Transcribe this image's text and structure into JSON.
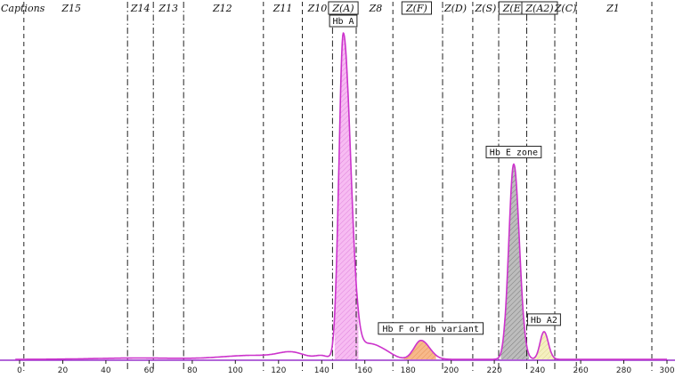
{
  "chart_data": {
    "type": "area",
    "title": "",
    "xlabel": "",
    "ylabel": "",
    "xlim": [
      0,
      300
    ],
    "ylim": [
      0,
      1
    ],
    "grid": false,
    "colors": {
      "curve": "#cc33cc",
      "baseline": "#9933cc",
      "boundary": "#222222",
      "fill_hb_a": "#f6b3f0",
      "fill_hb_f": "#f5b27a",
      "fill_hb_e": "#a8a8a8",
      "fill_hb_a2": "#f3eeb0"
    },
    "captions_label": "Captions",
    "zones": [
      {
        "label": "Z15",
        "center": 24,
        "boxed": false
      },
      {
        "label": "Z14",
        "center": 56,
        "boxed": false
      },
      {
        "label": "Z13",
        "center": 69,
        "boxed": false
      },
      {
        "label": "Z12",
        "center": 94,
        "boxed": false
      },
      {
        "label": "Z11",
        "center": 122,
        "boxed": false
      },
      {
        "label": "Z10",
        "center": 138,
        "boxed": false
      },
      {
        "label": "Z(A)",
        "center": 150,
        "boxed": true
      },
      {
        "label": "Z8",
        "center": 165,
        "boxed": false
      },
      {
        "label": "Z(F)",
        "center": 184,
        "boxed": true
      },
      {
        "label": "Z(D)",
        "center": 202,
        "boxed": false
      },
      {
        "label": "Z(S)",
        "center": 216,
        "boxed": false
      },
      {
        "label": "Z(E)",
        "center": 229,
        "boxed": true
      },
      {
        "label": "Z(A2)",
        "center": 241,
        "boxed": true
      },
      {
        "label": "Z(C)",
        "center": 253,
        "boxed": false
      },
      {
        "label": "Z1",
        "center": 275,
        "boxed": false
      }
    ],
    "boundaries": [
      {
        "x": 2,
        "style": "dashed"
      },
      {
        "x": 50,
        "style": "dashdot"
      },
      {
        "x": 62,
        "style": "dashdot"
      },
      {
        "x": 76,
        "style": "dashdot"
      },
      {
        "x": 113,
        "style": "dashed"
      },
      {
        "x": 131,
        "style": "dashed"
      },
      {
        "x": 145,
        "style": "dashdot"
      },
      {
        "x": 156,
        "style": "dashdot"
      },
      {
        "x": 173,
        "style": "dashed"
      },
      {
        "x": 196,
        "style": "dashdot"
      },
      {
        "x": 210,
        "style": "dashed"
      },
      {
        "x": 222,
        "style": "dashdot"
      },
      {
        "x": 235,
        "style": "dashdot"
      },
      {
        "x": 248,
        "style": "dashdot"
      },
      {
        "x": 258,
        "style": "dashed"
      },
      {
        "x": 293,
        "style": "dashed"
      }
    ],
    "x_ticks": [
      0,
      20,
      40,
      60,
      80,
      100,
      120,
      140,
      160,
      180,
      200,
      220,
      240,
      260,
      280,
      300
    ],
    "peaks": [
      {
        "name": "Hb A",
        "center": 150,
        "height": 1.0,
        "sigma_left": 2.0,
        "sigma_right": 3.4,
        "fill": "fill_hb_a",
        "fill_range": [
          146,
          157
        ]
      },
      {
        "name": "Hb F or Hb variant",
        "center": 186,
        "height": 0.058,
        "sigma_left": 3.2,
        "sigma_right": 4.0,
        "fill": "fill_hb_f",
        "fill_range": [
          178,
          193
        ]
      },
      {
        "name": "Hb E zone",
        "center": 229,
        "height": 0.6,
        "sigma_left": 2.3,
        "sigma_right": 2.6,
        "fill": "fill_hb_e",
        "fill_range": [
          223,
          236
        ]
      },
      {
        "name": "Hb A2",
        "center": 243,
        "height": 0.085,
        "sigma_left": 1.8,
        "sigma_right": 2.0,
        "fill": "fill_hb_a2",
        "fill_range": [
          238,
          248
        ]
      }
    ],
    "shoulders": [
      {
        "center": 108,
        "height": 0.012,
        "sigma": 14
      },
      {
        "center": 126,
        "height": 0.018,
        "sigma": 6
      },
      {
        "center": 140,
        "height": 0.01,
        "sigma": 3
      },
      {
        "center": 162,
        "height": 0.045,
        "sigma": 5
      },
      {
        "center": 170,
        "height": 0.015,
        "sigma": 4
      },
      {
        "center": 55,
        "height": 0.004,
        "sigma": 20
      }
    ],
    "annotations": [
      {
        "text": "Hb A",
        "peak_x": 150
      },
      {
        "text": "Hb F or Hb variant",
        "peak_x": 186
      },
      {
        "text": "Hb E zone",
        "peak_x": 229
      },
      {
        "text": "Hb A2",
        "peak_x": 243
      }
    ]
  }
}
